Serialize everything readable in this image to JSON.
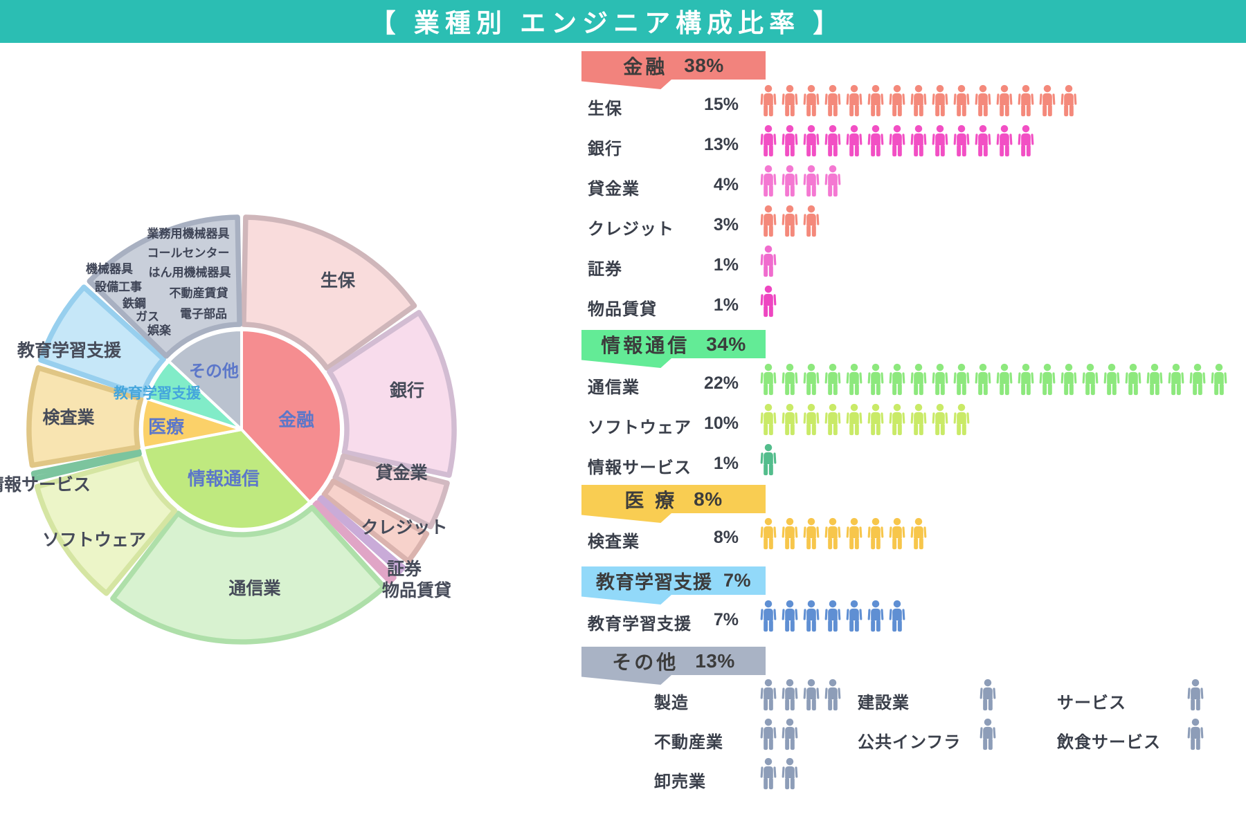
{
  "title": "【  業種別 エンジニア構成比率  】",
  "colors": {
    "header_band": "#2bbeb3",
    "title_text": "#ffffff",
    "page_bg": "#ffffff",
    "row_text": "#3a3f4a",
    "box_text": "#3c3c3c",
    "inner_label_text": "#5c77c9",
    "education_inner_label_text": "#44a5dc",
    "outer_label_text": "#464b59",
    "tiny_label_text": "#3e4456"
  },
  "chart_data": {
    "type": "pie",
    "variant": "sunburst-with-pictograph",
    "title": "業種別 エンジニア構成比率",
    "unit": "%",
    "rings": [
      "industry-group (inner)",
      "sub-industry (outer)"
    ],
    "start_angle_deg": 0,
    "direction": "clockwise",
    "groups": [
      {
        "label": "金融",
        "value": 38,
        "box_color": "#f2837d",
        "inner_color": "#f58d90",
        "subs": [
          {
            "label": "生保",
            "value": 15,
            "icon_color": "#f4897b",
            "pie_fill": "#f9dcdc",
            "pie_edge": "#cfb6ba"
          },
          {
            "label": "銀行",
            "value": 13,
            "icon_color": "#f24fc4",
            "pie_fill": "#f8dcec",
            "pie_edge": "#d2bcd2"
          },
          {
            "label": "貸金業",
            "value": 4,
            "icon_color": "#f478d2",
            "pie_fill": "#f7d8df",
            "pie_edge": "#d2b9c1"
          },
          {
            "label": "クレジット",
            "value": 3,
            "icon_color": "#f4897b",
            "pie_fill": "#f7d2cb",
            "pie_edge": "#dab3ae"
          },
          {
            "label": "証券",
            "value": 1,
            "icon_color": "#f06cce",
            "pie_fill": "#dcc0e8",
            "pie_edge": "#c9abd8"
          },
          {
            "label": "物品賃貸",
            "value": 1,
            "icon_color": "#ee46c1",
            "pie_fill": "#f2b9d4",
            "pie_edge": "#e0a5c6"
          }
        ]
      },
      {
        "label": "情報通信",
        "value": 34,
        "box_color": "#63eb96",
        "inner_color": "#bfe97f",
        "subs": [
          {
            "label": "通信業",
            "value": 22,
            "icon_color": "#8de87d",
            "pie_fill": "#d8f2d0",
            "pie_edge": "#aedfa9"
          },
          {
            "label": "ソフトウェア",
            "value": 10,
            "icon_color": "#c9ea67",
            "pie_fill": "#ecf5c8",
            "pie_edge": "#d5e5a2"
          },
          {
            "label": "情報サービス",
            "value": 1,
            "icon_color": "#53bd8c",
            "pie_fill": "#a6d8bd",
            "pie_edge": "#7cc49e"
          }
        ]
      },
      {
        "label": "医療",
        "value": 8,
        "box_label": "医 療",
        "box_color": "#f9cd52",
        "inner_color": "#fbd169",
        "subs": [
          {
            "label": "検査業",
            "value": 8,
            "icon_color": "#f7c64b",
            "pie_fill": "#f8e4b1",
            "pie_edge": "#e0c685"
          }
        ]
      },
      {
        "label": "教育学習支援",
        "value": 7,
        "box_color": "#92d9f9",
        "inner_color": "#81ecc8",
        "subs": [
          {
            "label": "教育学習支援",
            "value": 7,
            "icon_color": "#5f8fd3",
            "pie_fill": "#c6e7f8",
            "pie_edge": "#97cfee"
          }
        ]
      },
      {
        "label": "その他",
        "value": 13,
        "box_color": "#a9b3c5",
        "inner_color": "#bac2cf",
        "pie_fill": "#c9cfda",
        "pie_edge": "#a8b0c1",
        "icon_color": "#8d9db8",
        "pie_sublabels": [
          "業務用機械器具",
          "コールセンター",
          "機械器具",
          "はん用機械器具",
          "設備工事",
          "不動産賃貸",
          "鉄鋼",
          "ガス",
          "電子部品",
          "娯楽"
        ],
        "panel_columns": [
          [
            {
              "label": "製造",
              "count": 4
            },
            {
              "label": "不動産業",
              "count": 2
            },
            {
              "label": "卸売業",
              "count": 2
            }
          ],
          [
            {
              "label": "建設業",
              "count": 1
            },
            {
              "label": "公共インフラ",
              "count": 1
            }
          ],
          [
            {
              "label": "サービス",
              "count": 1
            },
            {
              "label": "飲食サービス",
              "count": 1
            }
          ]
        ]
      }
    ]
  }
}
